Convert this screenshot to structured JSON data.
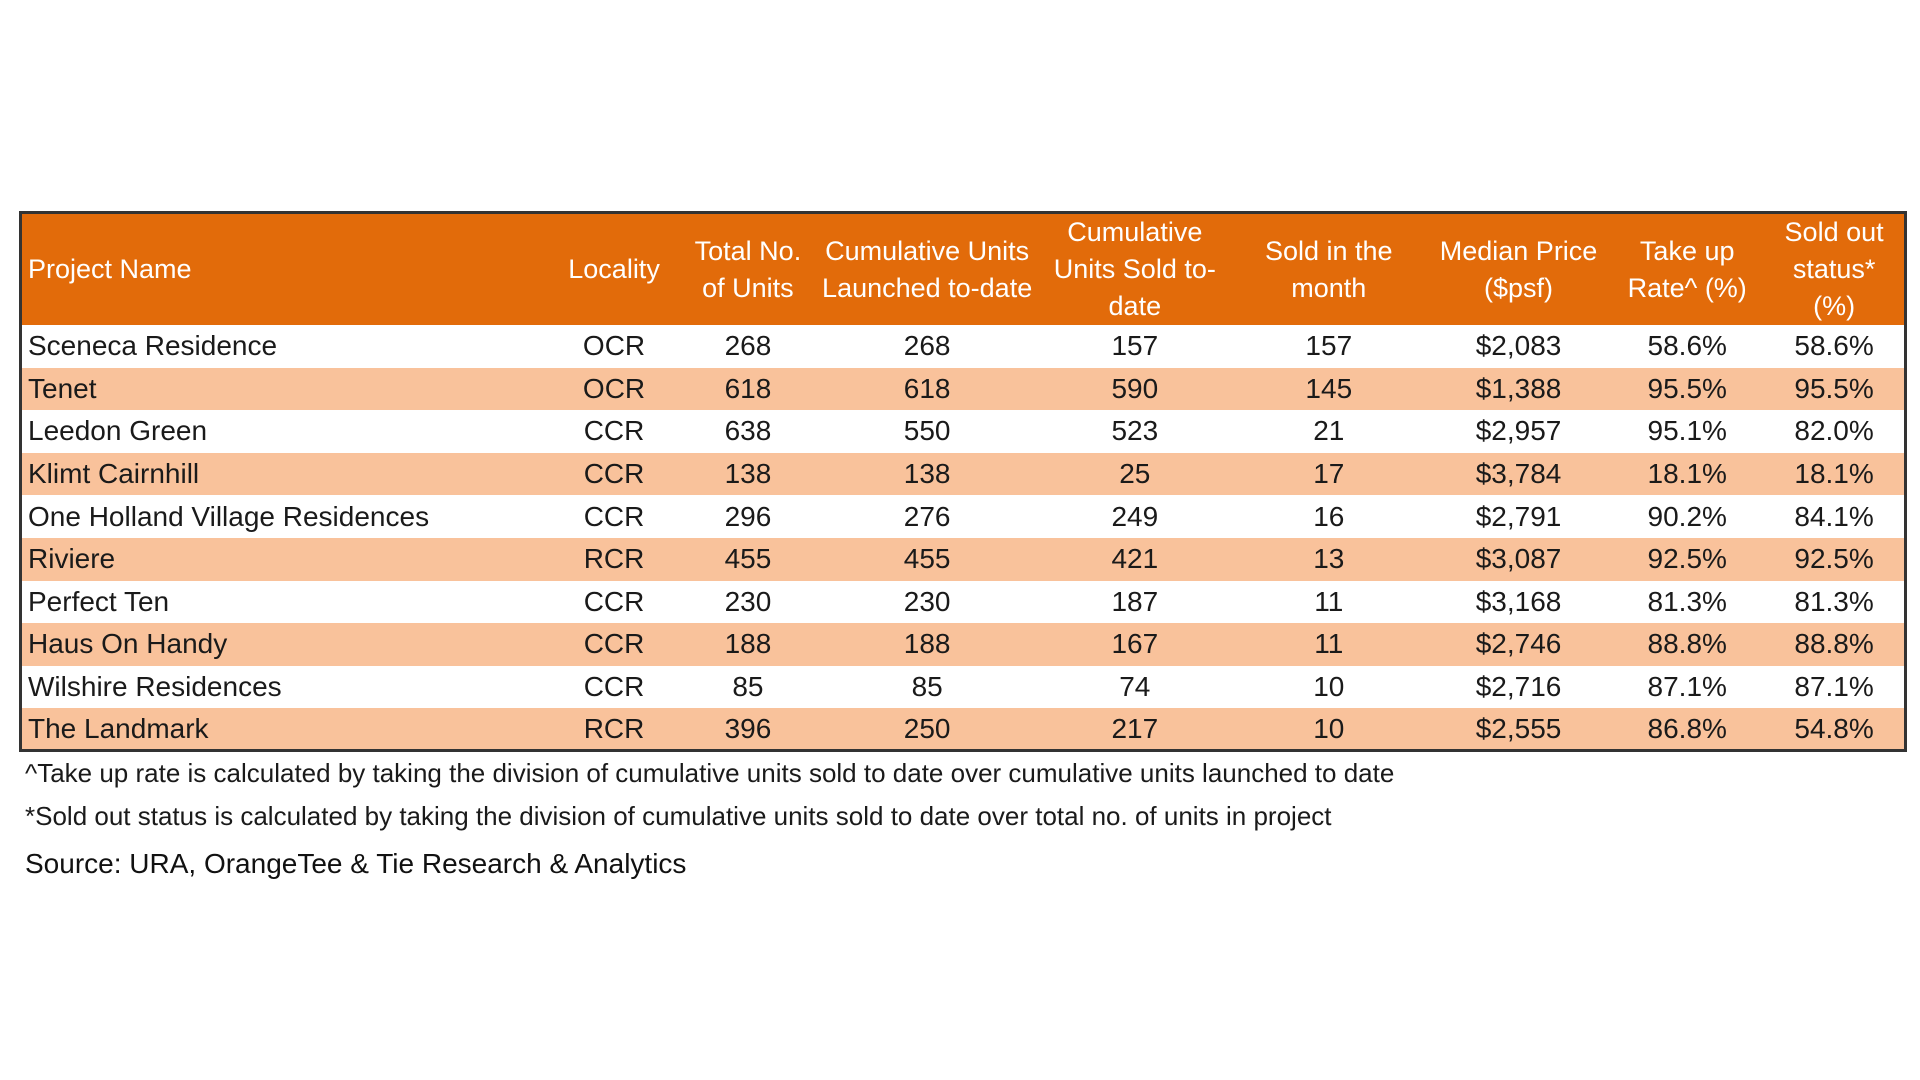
{
  "table": {
    "columns": [
      "Project Name",
      "Locality",
      "Total No. of Units",
      "Cumulative Units Launched to-date",
      "Cumulative Units Sold to-date",
      "Sold in the month",
      "Median Price ($psf)",
      "Take up Rate^ (%)",
      "Sold out status* (%)"
    ],
    "rows": [
      [
        "Sceneca Residence",
        "OCR",
        "268",
        "268",
        "157",
        "157",
        "$2,083",
        "58.6%",
        "58.6%"
      ],
      [
        "Tenet",
        "OCR",
        "618",
        "618",
        "590",
        "145",
        "$1,388",
        "95.5%",
        "95.5%"
      ],
      [
        "Leedon Green",
        "CCR",
        "638",
        "550",
        "523",
        "21",
        "$2,957",
        "95.1%",
        "82.0%"
      ],
      [
        "Klimt Cairnhill",
        "CCR",
        "138",
        "138",
        "25",
        "17",
        "$3,784",
        "18.1%",
        "18.1%"
      ],
      [
        "One Holland Village Residences",
        "CCR",
        "296",
        "276",
        "249",
        "16",
        "$2,791",
        "90.2%",
        "84.1%"
      ],
      [
        "Riviere",
        "RCR",
        "455",
        "455",
        "421",
        "13",
        "$3,087",
        "92.5%",
        "92.5%"
      ],
      [
        "Perfect Ten",
        "CCR",
        "230",
        "230",
        "187",
        "11",
        "$3,168",
        "81.3%",
        "81.3%"
      ],
      [
        "Haus On Handy",
        "CCR",
        "188",
        "188",
        "167",
        "11",
        "$2,746",
        "88.8%",
        "88.8%"
      ],
      [
        "Wilshire Residences",
        "CCR",
        "85",
        "85",
        "74",
        "10",
        "$2,716",
        "87.1%",
        "87.1%"
      ],
      [
        "The Landmark",
        "RCR",
        "396",
        "250",
        "217",
        "10",
        "$2,555",
        "86.8%",
        "54.8%"
      ]
    ]
  },
  "notes": {
    "take_up": "^Take up rate is calculated by taking the division of cumulative units sold to date over cumulative units launched to date",
    "sold_out": "*Sold out status is calculated by taking the division of cumulative units sold to date over total no. of units in project"
  },
  "source": "Source: URA, OrangeTee & Tie Research & Analytics",
  "colors": {
    "header_bg": "#e26b0a",
    "stripe_bg": "#f9c29b",
    "header_text": "#ffffff"
  }
}
